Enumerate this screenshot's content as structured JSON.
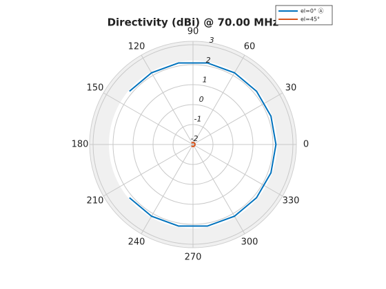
{
  "chart_data": {
    "type": "polar-line",
    "title": "Directivity (dBi) @ 70.00 MHz",
    "x": [
      -140,
      -120,
      -100,
      -80,
      -60,
      -40,
      -20,
      0,
      20,
      40,
      60,
      80,
      100,
      120,
      140
    ],
    "series": [
      {
        "name": "el=0° Ⓐ",
        "color": "#0072bd",
        "values": [
          2.15,
          2.15,
          2.15,
          2.15,
          2.15,
          2.15,
          2.15,
          2.15,
          2.15,
          2.15,
          2.15,
          2.15,
          2.15,
          2.15,
          2.15
        ]
      },
      {
        "name": "el=45°",
        "color": "#d95319",
        "values": [
          -1.9,
          -1.9,
          -1.9,
          -1.9,
          -1.9,
          -1.9,
          -1.9,
          -1.9,
          -1.9,
          -1.9,
          -1.9,
          -1.9,
          -1.9,
          -1.9,
          -1.9
        ]
      }
    ],
    "xticks": [
      0,
      30,
      60,
      90,
      120,
      150,
      180,
      210,
      240,
      270,
      300,
      330
    ],
    "ylim": [
      -2,
      3
    ],
    "yticks": [
      -2,
      -1,
      0,
      1,
      2,
      3
    ],
    "grid": true
  }
}
